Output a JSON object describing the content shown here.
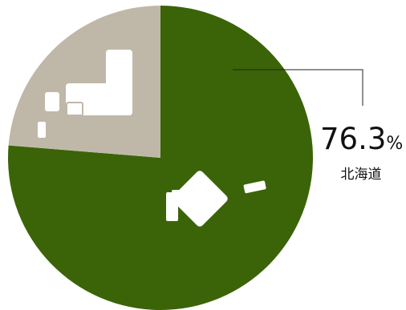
{
  "chart_data": {
    "type": "pie",
    "slices": [
      {
        "label": "北海道",
        "value": 76.3,
        "color": "#3a6407"
      },
      {
        "label": "",
        "value": 23.7,
        "color": "#bfb8a8"
      }
    ],
    "data_label": {
      "value": "76.3",
      "unit": "%",
      "name": "北海道"
    },
    "icons": [
      {
        "name": "hokkaido-map-icon"
      },
      {
        "name": "japan-mainland-map-icon"
      }
    ]
  }
}
